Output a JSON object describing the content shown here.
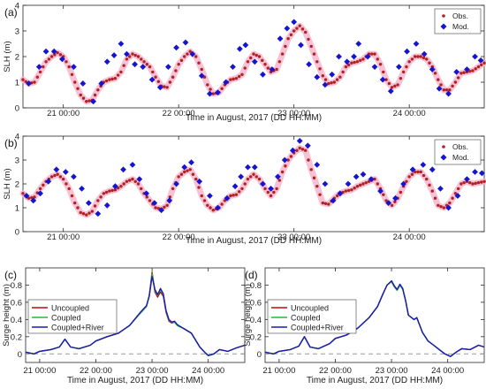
{
  "chart_data": [
    {
      "panel": "(a)",
      "type": "scatter",
      "title": "",
      "xlabel": "Time in August, 2017 (DD HH:MM)",
      "ylabel": "SLH (m)",
      "xlim": [
        20.65,
        24.65
      ],
      "ylim": [
        0,
        4
      ],
      "xticks": [
        21,
        22,
        23,
        24
      ],
      "xtick_labels": [
        "21 00:00",
        "22 00:00",
        "23 00:00",
        "24 00:00"
      ],
      "yticks": [
        0,
        1,
        2,
        3,
        4
      ],
      "legend_position": "top-right",
      "series": [
        {
          "name": "Obs.",
          "marker": "dot",
          "color": "#b22222",
          "x": [
            20.65,
            20.7,
            20.75,
            20.8,
            20.85,
            20.9,
            20.95,
            21.0,
            21.05,
            21.1,
            21.15,
            21.2,
            21.25,
            21.3,
            21.35,
            21.4,
            21.45,
            21.5,
            21.55,
            21.6,
            21.65,
            21.7,
            21.75,
            21.8,
            21.85,
            21.9,
            21.95,
            22.0,
            22.05,
            22.1,
            22.15,
            22.2,
            22.25,
            22.3,
            22.35,
            22.4,
            22.45,
            22.5,
            22.55,
            22.6,
            22.65,
            22.7,
            22.75,
            22.8,
            22.85,
            22.9,
            22.95,
            23.0,
            23.05,
            23.1,
            23.15,
            23.2,
            23.25,
            23.3,
            23.35,
            23.4,
            23.45,
            23.5,
            23.55,
            23.6,
            23.65,
            23.7,
            23.75,
            23.8,
            23.85,
            23.9,
            23.95,
            24.0,
            24.05,
            24.1,
            24.15,
            24.2,
            24.25,
            24.3,
            24.35,
            24.4,
            24.45,
            24.5,
            24.55,
            24.6,
            24.65
          ],
          "y": [
            1.1,
            0.95,
            1.0,
            1.4,
            1.8,
            2.0,
            2.15,
            2.0,
            1.6,
            1.0,
            0.5,
            0.25,
            0.3,
            0.7,
            1.0,
            1.1,
            1.15,
            1.4,
            1.9,
            2.1,
            2.0,
            1.8,
            1.6,
            1.2,
            0.85,
            0.8,
            1.2,
            1.7,
            2.0,
            2.2,
            2.0,
            1.5,
            0.9,
            0.55,
            0.6,
            0.9,
            1.1,
            1.15,
            1.3,
            1.8,
            2.1,
            2.0,
            1.7,
            1.4,
            1.5,
            2.1,
            2.7,
            3.0,
            3.2,
            2.95,
            2.4,
            1.8,
            1.25,
            0.95,
            1.0,
            1.2,
            1.6,
            1.75,
            1.8,
            1.9,
            2.1,
            2.1,
            1.7,
            1.1,
            0.8,
            0.9,
            1.4,
            1.8,
            2.0,
            2.0,
            1.9,
            1.6,
            1.1,
            0.7,
            0.7,
            1.0,
            1.35,
            1.4,
            1.45,
            1.6,
            1.75
          ]
        },
        {
          "name": "Mod.",
          "marker": "diamond",
          "color": "#1515d0",
          "x": [
            20.7,
            20.79,
            20.85,
            20.92,
            20.99,
            21.09,
            21.17,
            21.26,
            21.33,
            21.38,
            21.44,
            21.5,
            21.55,
            21.62,
            21.69,
            21.77,
            21.84,
            21.91,
            21.98,
            22.06,
            22.12,
            22.2,
            22.27,
            22.34,
            22.41,
            22.47,
            22.53,
            22.58,
            22.66,
            22.73,
            22.81,
            22.88,
            22.94,
            23.0,
            23.06,
            23.13,
            23.2,
            23.27,
            23.33,
            23.39,
            23.46,
            23.52,
            23.56,
            23.64,
            23.7,
            23.77,
            23.84,
            23.91,
            23.98,
            24.06,
            24.13,
            24.2,
            24.26,
            24.34,
            24.41,
            24.5,
            24.57,
            24.62
          ],
          "y": [
            0.95,
            1.6,
            2.2,
            2.2,
            1.9,
            1.6,
            0.95,
            0.25,
            0.95,
            1.8,
            2.05,
            2.5,
            2.1,
            1.7,
            1.6,
            1.1,
            0.8,
            1.6,
            2.35,
            2.55,
            2.1,
            1.25,
            0.55,
            0.6,
            1.0,
            1.6,
            2.3,
            2.45,
            1.8,
            1.3,
            1.5,
            2.7,
            3.1,
            3.35,
            2.45,
            1.7,
            1.2,
            0.9,
            1.3,
            2.0,
            1.8,
            2.0,
            2.5,
            2.0,
            1.6,
            1.1,
            0.65,
            1.6,
            2.2,
            2.5,
            2.1,
            1.5,
            0.75,
            0.55,
            1.4,
            1.5,
            2.0,
            1.85
          ]
        }
      ]
    },
    {
      "panel": "(b)",
      "type": "scatter",
      "title": "",
      "xlabel": "Time in August, 2017 (DD HH:MM)",
      "ylabel": "SLH (m)",
      "xlim": [
        20.65,
        24.65
      ],
      "ylim": [
        0,
        4
      ],
      "xticks": [
        21,
        22,
        23,
        24
      ],
      "xtick_labels": [
        "21 00:00",
        "22 00:00",
        "23 00:00",
        "24 00:00"
      ],
      "yticks": [
        0,
        1,
        2,
        3,
        4
      ],
      "legend_position": "top-right",
      "series": [
        {
          "name": "Obs.",
          "marker": "dot",
          "color": "#b22222",
          "x": [
            20.65,
            20.7,
            20.75,
            20.8,
            20.85,
            20.9,
            20.95,
            21.0,
            21.05,
            21.1,
            21.15,
            21.2,
            21.25,
            21.3,
            21.35,
            21.4,
            21.45,
            21.5,
            21.55,
            21.6,
            21.65,
            21.7,
            21.75,
            21.8,
            21.85,
            21.9,
            21.95,
            22.0,
            22.05,
            22.1,
            22.15,
            22.2,
            22.25,
            22.3,
            22.35,
            22.4,
            22.45,
            22.5,
            22.55,
            22.6,
            22.65,
            22.7,
            22.75,
            22.8,
            22.85,
            22.9,
            22.95,
            23.0,
            23.05,
            23.1,
            23.15,
            23.2,
            23.25,
            23.3,
            23.35,
            23.4,
            23.45,
            23.5,
            23.55,
            23.6,
            23.65,
            23.7,
            23.75,
            23.8,
            23.85,
            23.9,
            23.95,
            24.0,
            24.05,
            24.1,
            24.15,
            24.2,
            24.25,
            24.3,
            24.35,
            24.4,
            24.45,
            24.5,
            24.55,
            24.6,
            24.65
          ],
          "y": [
            1.6,
            1.4,
            1.45,
            1.8,
            2.1,
            2.3,
            2.4,
            2.2,
            1.8,
            1.2,
            0.8,
            0.7,
            0.85,
            1.3,
            1.6,
            1.7,
            1.75,
            1.9,
            2.1,
            2.2,
            2.0,
            1.6,
            1.3,
            1.0,
            0.95,
            1.1,
            1.8,
            2.3,
            2.5,
            2.6,
            2.2,
            1.5,
            1.1,
            0.9,
            1.0,
            1.3,
            1.5,
            1.55,
            1.8,
            2.2,
            2.4,
            2.2,
            1.8,
            1.5,
            1.8,
            2.5,
            3.0,
            3.3,
            3.5,
            3.4,
            2.6,
            1.9,
            1.2,
            1.15,
            1.4,
            1.6,
            1.7,
            1.75,
            1.9,
            2.0,
            2.1,
            2.2,
            1.8,
            1.3,
            1.1,
            1.4,
            1.9,
            2.3,
            2.5,
            2.5,
            2.2,
            1.7,
            1.1,
            1.0,
            1.2,
            1.6,
            2.0,
            2.1,
            2.0,
            2.05,
            2.1
          ]
        },
        {
          "name": "Mod.",
          "marker": "diamond",
          "color": "#1515d0",
          "x": [
            20.68,
            20.74,
            20.8,
            20.87,
            20.94,
            21.02,
            21.09,
            21.16,
            21.22,
            21.3,
            21.38,
            21.45,
            21.52,
            21.6,
            21.66,
            21.72,
            21.79,
            21.85,
            21.92,
            21.98,
            22.05,
            22.11,
            22.18,
            22.27,
            22.34,
            22.42,
            22.49,
            22.54,
            22.6,
            22.66,
            22.73,
            22.8,
            22.86,
            22.92,
            22.99,
            23.05,
            23.12,
            23.2,
            23.27,
            23.34,
            23.4,
            23.47,
            23.54,
            23.6,
            23.67,
            23.75,
            23.82,
            23.88,
            23.95,
            24.03,
            24.12,
            24.2,
            24.27,
            24.34,
            24.42,
            24.5,
            24.57,
            24.63
          ],
          "y": [
            1.5,
            1.3,
            1.6,
            2.1,
            2.6,
            2.5,
            2.3,
            1.8,
            1.2,
            0.75,
            1.1,
            1.9,
            2.6,
            2.8,
            2.2,
            1.6,
            1.2,
            0.9,
            1.3,
            2.0,
            2.7,
            2.9,
            2.1,
            1.5,
            1.0,
            1.4,
            1.9,
            2.3,
            2.7,
            2.7,
            2.0,
            1.8,
            2.3,
            3.0,
            3.4,
            3.8,
            3.6,
            2.8,
            2.0,
            1.3,
            1.6,
            2.0,
            2.3,
            2.4,
            2.2,
            1.7,
            1.2,
            1.4,
            2.0,
            2.6,
            2.8,
            2.6,
            1.8,
            1.0,
            1.5,
            2.2,
            2.5,
            2.45
          ]
        }
      ]
    },
    {
      "panel": "(c)",
      "type": "line",
      "title": "",
      "xlabel": "Time in August, 2017 (DD HH:MM)",
      "ylabel": "Surge height (m)",
      "xlim": [
        20.75,
        24.65
      ],
      "ylim": [
        -0.1,
        1.0
      ],
      "xticks": [
        21,
        22,
        23,
        24
      ],
      "xtick_labels": [
        "21 00:00",
        "22 00:00",
        "23 00:00",
        "24 00:00"
      ],
      "yticks": [
        0,
        0.2,
        0.4,
        0.6,
        0.8
      ],
      "ytick_labels": [
        "0",
        "0.2",
        "0.4",
        "0.6",
        "0.8"
      ],
      "reference_line": 0,
      "legend_position": "middle-left",
      "x": [
        20.75,
        20.9,
        21.0,
        21.2,
        21.35,
        21.45,
        21.55,
        21.7,
        21.9,
        22.0,
        22.2,
        22.4,
        22.6,
        22.8,
        22.9,
        22.95,
        23.0,
        23.05,
        23.1,
        23.15,
        23.2,
        23.25,
        23.3,
        23.35,
        23.4,
        23.45,
        23.55,
        23.7,
        23.85,
        23.95,
        24.0,
        24.1,
        24.2,
        24.35,
        24.5,
        24.65
      ],
      "series": [
        {
          "name": "Uncoupled",
          "color": "#b80f0f",
          "y": [
            0.02,
            0.0,
            0.03,
            0.05,
            0.08,
            0.17,
            0.08,
            0.06,
            0.1,
            0.15,
            0.2,
            0.24,
            0.33,
            0.48,
            0.55,
            0.68,
            0.95,
            0.72,
            0.66,
            0.72,
            0.67,
            0.48,
            0.38,
            0.36,
            0.37,
            0.33,
            0.3,
            0.24,
            0.08,
            0.01,
            -0.02,
            0.0,
            0.05,
            0.03,
            0.07,
            0.1
          ]
        },
        {
          "name": "Coupled",
          "color": "#1fbf2b",
          "y": [
            0.02,
            0.0,
            0.03,
            0.05,
            0.08,
            0.17,
            0.08,
            0.06,
            0.1,
            0.15,
            0.2,
            0.24,
            0.33,
            0.48,
            0.55,
            0.67,
            0.93,
            0.74,
            0.68,
            0.75,
            0.69,
            0.49,
            0.39,
            0.37,
            0.37,
            0.33,
            0.3,
            0.24,
            0.08,
            0.01,
            -0.02,
            0.0,
            0.05,
            0.03,
            0.07,
            0.1
          ]
        },
        {
          "name": "Coupled+River",
          "color": "#1a1ab8",
          "y": [
            0.02,
            0.0,
            0.03,
            0.05,
            0.08,
            0.17,
            0.08,
            0.06,
            0.1,
            0.15,
            0.2,
            0.24,
            0.33,
            0.49,
            0.56,
            0.67,
            0.9,
            0.75,
            0.69,
            0.76,
            0.7,
            0.5,
            0.4,
            0.37,
            0.38,
            0.34,
            0.3,
            0.24,
            0.08,
            0.01,
            -0.02,
            0.0,
            0.05,
            0.03,
            0.07,
            0.1
          ]
        }
      ]
    },
    {
      "panel": "(d)",
      "type": "line",
      "title": "",
      "xlabel": "Time in August, 2017 (DD HH:MM)",
      "ylabel": "Surge height (m)",
      "xlim": [
        20.75,
        24.65
      ],
      "ylim": [
        -0.1,
        1.0
      ],
      "xticks": [
        21,
        22,
        23,
        24
      ],
      "xtick_labels": [
        "21 00:00",
        "22 00:00",
        "23 00:00",
        "24 00:00"
      ],
      "yticks": [
        0,
        0.2,
        0.4,
        0.6,
        0.8
      ],
      "ytick_labels": [
        "0",
        "0.2",
        "0.4",
        "0.6",
        "0.8"
      ],
      "reference_line": 0,
      "legend_position": "middle-left",
      "x": [
        20.75,
        20.9,
        21.0,
        21.2,
        21.35,
        21.45,
        21.55,
        21.7,
        21.9,
        22.0,
        22.2,
        22.4,
        22.6,
        22.75,
        22.85,
        22.92,
        23.0,
        23.05,
        23.1,
        23.15,
        23.2,
        23.25,
        23.3,
        23.4,
        23.45,
        23.55,
        23.65,
        23.75,
        23.85,
        23.95,
        24.05,
        24.15,
        24.25,
        24.4,
        24.55,
        24.65
      ],
      "series": [
        {
          "name": "Uncoupled",
          "color": "#b80f0f",
          "y": [
            0.02,
            0.0,
            0.03,
            0.05,
            0.09,
            0.2,
            0.08,
            0.06,
            0.12,
            0.18,
            0.22,
            0.3,
            0.42,
            0.55,
            0.7,
            0.8,
            0.84,
            0.78,
            0.74,
            0.8,
            0.75,
            0.62,
            0.45,
            0.4,
            0.42,
            0.25,
            0.15,
            0.1,
            0.05,
            0.0,
            -0.03,
            0.02,
            0.06,
            0.05,
            0.1,
            0.08
          ]
        },
        {
          "name": "Coupled",
          "color": "#1fbf2b",
          "y": [
            0.02,
            0.0,
            0.03,
            0.05,
            0.09,
            0.2,
            0.08,
            0.06,
            0.12,
            0.18,
            0.22,
            0.3,
            0.42,
            0.55,
            0.7,
            0.8,
            0.84,
            0.78,
            0.74,
            0.8,
            0.75,
            0.62,
            0.45,
            0.4,
            0.42,
            0.25,
            0.15,
            0.1,
            0.05,
            0.0,
            -0.03,
            0.02,
            0.06,
            0.05,
            0.1,
            0.08
          ]
        },
        {
          "name": "Coupled+River",
          "color": "#1a1ab8",
          "y": [
            0.02,
            0.0,
            0.03,
            0.05,
            0.09,
            0.2,
            0.08,
            0.06,
            0.12,
            0.18,
            0.22,
            0.3,
            0.42,
            0.55,
            0.7,
            0.8,
            0.85,
            0.79,
            0.75,
            0.81,
            0.76,
            0.62,
            0.45,
            0.4,
            0.42,
            0.25,
            0.15,
            0.1,
            0.05,
            0.0,
            -0.03,
            0.02,
            0.06,
            0.05,
            0.1,
            0.08
          ]
        }
      ]
    }
  ]
}
